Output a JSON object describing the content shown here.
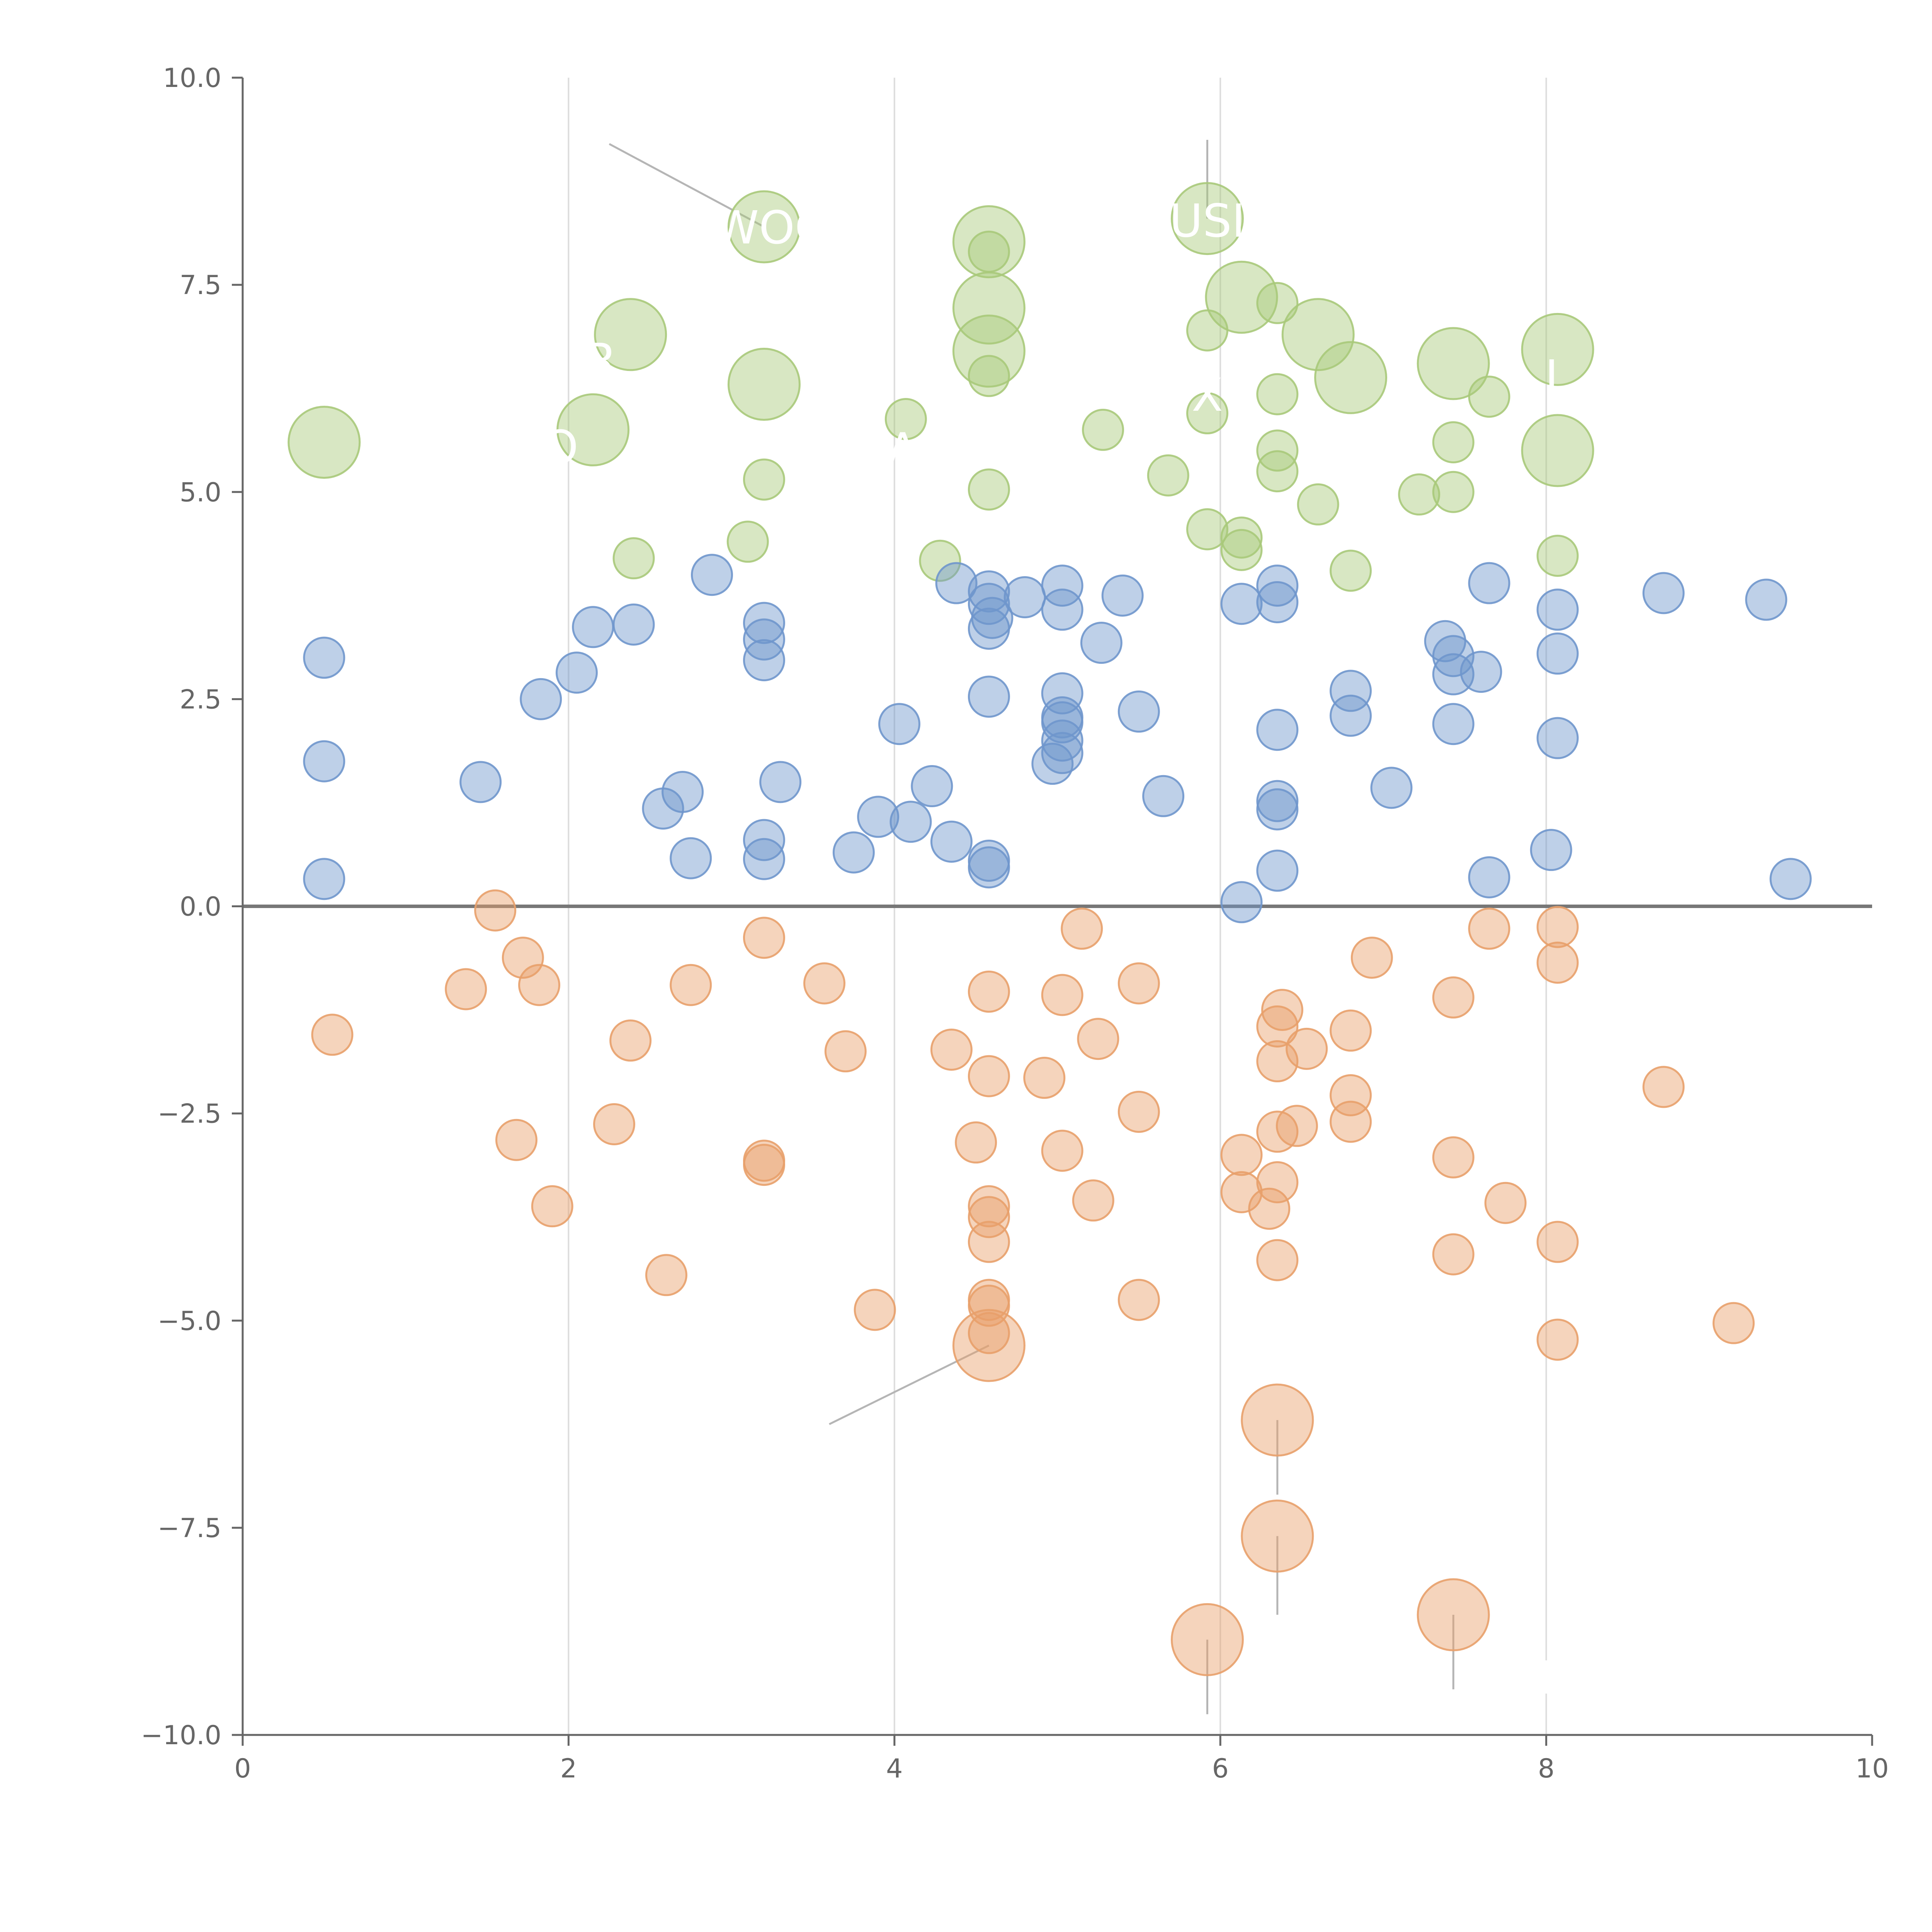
{
  "chart_data": {
    "type": "scatter",
    "title": "",
    "xlabel": "",
    "ylabel": "",
    "xlim": [
      0,
      10
    ],
    "ylim": [
      -10,
      10
    ],
    "x_ticks": [
      0,
      2,
      4,
      6,
      8,
      10
    ],
    "x_tick_labels": [
      "0",
      "2",
      "4",
      "6",
      "8",
      "10"
    ],
    "y_ticks": [
      10,
      7.5,
      5,
      2.5,
      0,
      -2.5,
      -5,
      -7.5,
      -10
    ],
    "y_tick_labels": [
      "10.0",
      "7.5",
      "5.0",
      "2.5",
      "0.0",
      "−2.5",
      "−5.0",
      "−7.5",
      "−10.0"
    ],
    "vertical_gridlines": [
      2,
      4,
      6,
      8
    ],
    "reference_line_y": 0,
    "colors": {
      "positive": "#a9c97a",
      "middle": "#6f96cc",
      "negative": "#e8a06a",
      "axis": "#666666",
      "grid": "#dddddd",
      "zero_line": "#777777",
      "leader": "#b5b5b5"
    },
    "series": [
      {
        "name": "positive",
        "points": [
          [
            0.5,
            5.6,
            2
          ],
          [
            2.38,
            6.9,
            2
          ],
          [
            2.15,
            5.75,
            2
          ],
          [
            2.4,
            4.2,
            1
          ],
          [
            3.2,
            8.2,
            2
          ],
          [
            3.2,
            6.3,
            2
          ],
          [
            3.2,
            5.15,
            1
          ],
          [
            3.1,
            4.4,
            1
          ],
          [
            4.07,
            5.88,
            1
          ],
          [
            4.28,
            4.17,
            1
          ],
          [
            4.58,
            8.02,
            2
          ],
          [
            4.58,
            7.9,
            1
          ],
          [
            4.58,
            7.22,
            2
          ],
          [
            4.58,
            6.7,
            2
          ],
          [
            4.58,
            6.4,
            1
          ],
          [
            4.58,
            5.03,
            1
          ],
          [
            5.28,
            5.75,
            1
          ],
          [
            5.68,
            5.2,
            1
          ],
          [
            5.92,
            8.3,
            2
          ],
          [
            5.92,
            6.95,
            1
          ],
          [
            5.92,
            5.95,
            1
          ],
          [
            5.92,
            4.55,
            1
          ],
          [
            6.13,
            7.35,
            2
          ],
          [
            6.13,
            4.45,
            1
          ],
          [
            6.13,
            4.3,
            1
          ],
          [
            6.35,
            7.28,
            1
          ],
          [
            6.35,
            6.18,
            1
          ],
          [
            6.35,
            5.5,
            1
          ],
          [
            6.35,
            5.25,
            1
          ],
          [
            6.6,
            6.9,
            2
          ],
          [
            6.6,
            4.85,
            1
          ],
          [
            6.8,
            6.38,
            2
          ],
          [
            6.8,
            4.05,
            1
          ],
          [
            7.22,
            4.97,
            1
          ],
          [
            7.43,
            6.55,
            2
          ],
          [
            7.43,
            5.6,
            1
          ],
          [
            7.43,
            5.0,
            1
          ],
          [
            7.65,
            6.15,
            1
          ],
          [
            8.07,
            6.72,
            2
          ],
          [
            8.07,
            5.5,
            2
          ],
          [
            8.07,
            4.23,
            1
          ]
        ]
      },
      {
        "name": "middle",
        "points": [
          [
            0.5,
            3.0,
            1
          ],
          [
            0.5,
            1.75,
            1
          ],
          [
            0.5,
            0.33,
            1
          ],
          [
            1.46,
            1.5,
            1
          ],
          [
            1.83,
            2.5,
            1
          ],
          [
            2.05,
            2.82,
            1
          ],
          [
            2.15,
            3.37,
            1
          ],
          [
            2.4,
            3.4,
            1
          ],
          [
            2.58,
            1.18,
            1
          ],
          [
            2.7,
            1.38,
            1
          ],
          [
            2.75,
            0.58,
            1
          ],
          [
            2.88,
            4.0,
            1
          ],
          [
            3.2,
            3.42,
            1
          ],
          [
            3.2,
            3.22,
            1
          ],
          [
            3.2,
            2.97,
            1
          ],
          [
            3.2,
            0.8,
            1
          ],
          [
            3.2,
            0.57,
            1
          ],
          [
            3.3,
            1.5,
            1
          ],
          [
            3.75,
            0.65,
            1
          ],
          [
            3.9,
            1.08,
            1
          ],
          [
            4.03,
            2.2,
            1
          ],
          [
            4.1,
            1.02,
            1
          ],
          [
            4.23,
            1.45,
            1
          ],
          [
            4.35,
            0.78,
            1
          ],
          [
            4.38,
            3.9,
            1
          ],
          [
            4.58,
            3.8,
            1
          ],
          [
            4.58,
            3.65,
            1
          ],
          [
            4.6,
            3.48,
            1
          ],
          [
            4.58,
            3.35,
            1
          ],
          [
            4.58,
            2.53,
            1
          ],
          [
            4.58,
            0.55,
            1
          ],
          [
            4.58,
            0.47,
            1
          ],
          [
            4.8,
            3.73,
            1
          ],
          [
            4.97,
            1.72,
            1
          ],
          [
            5.03,
            3.87,
            1
          ],
          [
            5.03,
            3.58,
            1
          ],
          [
            5.03,
            2.57,
            1
          ],
          [
            5.03,
            2.28,
            1
          ],
          [
            5.03,
            2.22,
            1
          ],
          [
            5.03,
            2.0,
            1
          ],
          [
            5.03,
            1.85,
            1
          ],
          [
            5.27,
            3.18,
            1
          ],
          [
            5.4,
            3.75,
            1
          ],
          [
            5.5,
            2.35,
            1
          ],
          [
            5.65,
            1.33,
            1
          ],
          [
            6.13,
            3.65,
            1
          ],
          [
            6.13,
            0.05,
            1
          ],
          [
            6.35,
            3.87,
            1
          ],
          [
            6.35,
            3.67,
            1
          ],
          [
            6.35,
            2.13,
            1
          ],
          [
            6.35,
            1.27,
            1
          ],
          [
            6.35,
            1.17,
            1
          ],
          [
            6.35,
            0.43,
            1
          ],
          [
            6.8,
            2.6,
            1
          ],
          [
            6.8,
            2.3,
            1
          ],
          [
            7.05,
            1.43,
            1
          ],
          [
            7.38,
            3.2,
            1
          ],
          [
            7.43,
            3.02,
            1
          ],
          [
            7.43,
            2.8,
            1
          ],
          [
            7.43,
            2.2,
            1
          ],
          [
            7.6,
            2.83,
            1
          ],
          [
            7.65,
            3.9,
            1
          ],
          [
            7.65,
            0.35,
            1
          ],
          [
            8.03,
            0.68,
            1
          ],
          [
            8.07,
            3.58,
            1
          ],
          [
            8.07,
            3.05,
            1
          ],
          [
            8.07,
            2.03,
            1
          ],
          [
            8.72,
            3.78,
            1
          ],
          [
            9.35,
            3.7,
            1
          ],
          [
            9.5,
            0.33,
            1
          ]
        ]
      },
      {
        "name": "negative",
        "points": [
          [
            0.55,
            -1.55,
            1
          ],
          [
            1.37,
            -1.0,
            1
          ],
          [
            1.55,
            -0.05,
            1
          ],
          [
            1.72,
            -0.62,
            1
          ],
          [
            1.82,
            -0.95,
            1
          ],
          [
            1.68,
            -2.82,
            1
          ],
          [
            1.9,
            -3.62,
            1
          ],
          [
            2.28,
            -2.63,
            1
          ],
          [
            2.38,
            -1.62,
            1
          ],
          [
            2.6,
            -4.45,
            1
          ],
          [
            2.75,
            -0.95,
            1
          ],
          [
            3.2,
            -0.38,
            1
          ],
          [
            3.2,
            -3.07,
            1
          ],
          [
            3.2,
            -3.12,
            1
          ],
          [
            3.57,
            -0.93,
            1
          ],
          [
            3.7,
            -1.75,
            1
          ],
          [
            3.88,
            -4.87,
            1
          ],
          [
            4.35,
            -1.73,
            1
          ],
          [
            4.5,
            -2.85,
            1
          ],
          [
            4.58,
            -1.03,
            1
          ],
          [
            4.58,
            -2.05,
            1
          ],
          [
            4.58,
            -3.62,
            1
          ],
          [
            4.58,
            -3.75,
            1
          ],
          [
            4.58,
            -4.05,
            1
          ],
          [
            4.58,
            -4.75,
            1
          ],
          [
            4.58,
            -4.82,
            1
          ],
          [
            4.58,
            -5.15,
            1
          ],
          [
            4.58,
            -5.3,
            2
          ],
          [
            4.92,
            -2.07,
            1
          ],
          [
            5.03,
            -1.07,
            1
          ],
          [
            5.03,
            -2.95,
            1
          ],
          [
            5.15,
            -0.27,
            1
          ],
          [
            5.22,
            -3.55,
            1
          ],
          [
            5.25,
            -1.6,
            1
          ],
          [
            5.5,
            -0.93,
            1
          ],
          [
            5.5,
            -2.48,
            1
          ],
          [
            5.5,
            -4.75,
            1
          ],
          [
            5.92,
            -8.85,
            2
          ],
          [
            6.13,
            -3.0,
            1
          ],
          [
            6.13,
            -3.45,
            1
          ],
          [
            6.3,
            -3.65,
            1
          ],
          [
            6.35,
            -1.45,
            1
          ],
          [
            6.38,
            -1.25,
            1
          ],
          [
            6.35,
            -1.87,
            1
          ],
          [
            6.35,
            -2.72,
            1
          ],
          [
            6.35,
            -3.33,
            1
          ],
          [
            6.35,
            -4.27,
            1
          ],
          [
            6.35,
            -6.2,
            2
          ],
          [
            6.35,
            -7.6,
            2
          ],
          [
            6.47,
            -2.65,
            1
          ],
          [
            6.53,
            -1.72,
            1
          ],
          [
            6.8,
            -1.5,
            1
          ],
          [
            6.8,
            -2.28,
            1
          ],
          [
            6.8,
            -2.6,
            1
          ],
          [
            6.93,
            -0.62,
            1
          ],
          [
            7.43,
            -1.1,
            1
          ],
          [
            7.43,
            -3.03,
            1
          ],
          [
            7.43,
            -4.2,
            1
          ],
          [
            7.43,
            -8.55,
            2
          ],
          [
            7.65,
            -0.27,
            1
          ],
          [
            7.75,
            -3.58,
            1
          ],
          [
            8.07,
            -0.25,
            1
          ],
          [
            8.07,
            -0.68,
            1
          ],
          [
            8.07,
            -4.05,
            1
          ],
          [
            8.07,
            -5.23,
            1
          ],
          [
            8.72,
            -2.18,
            1
          ],
          [
            9.15,
            -5.03,
            1
          ]
        ]
      }
    ],
    "annotations": [
      {
        "text": "WOO",
        "x": 3.25,
        "y": 8.0,
        "anchor": [
          3.2,
          8.2
        ],
        "tail": [
          2.25,
          9.2
        ]
      },
      {
        "text": "USI",
        "x": 5.92,
        "y": 8.08,
        "anchor": [
          5.92,
          8.3
        ],
        "tail": [
          5.92,
          9.25
        ]
      },
      {
        "text": "R",
        "x": 2.2,
        "y": 6.4,
        "anchor": null,
        "tail": null
      },
      {
        "text": "O",
        "x": 1.95,
        "y": 5.35,
        "anchor": null,
        "tail": null
      },
      {
        "text": "A",
        "x": 4.05,
        "y": 5.32,
        "anchor": null,
        "tail": null
      },
      {
        "text": "X",
        "x": 5.92,
        "y": 5.98,
        "anchor": null,
        "tail": null
      },
      {
        "text": "L",
        "x": 8.07,
        "y": 6.2,
        "anchor": null,
        "tail": null
      }
    ],
    "leader_lines": [
      {
        "from": [
          4.58,
          -5.3
        ],
        "to": [
          3.6,
          -6.25
        ]
      },
      {
        "from": [
          6.35,
          -6.2
        ],
        "to": [
          6.35,
          -7.1
        ]
      },
      {
        "from": [
          6.35,
          -7.6
        ],
        "to": [
          6.35,
          -8.55
        ]
      },
      {
        "from": [
          5.92,
          -8.85
        ],
        "to": [
          5.92,
          -9.75
        ]
      },
      {
        "from": [
          7.43,
          -8.55
        ],
        "to": [
          7.43,
          -9.45
        ]
      }
    ],
    "faint_labels": [
      {
        "text": "I",
        "x": 5.98,
        "y": 9.5
      },
      {
        "text": "I",
        "x": 8.0,
        "y": -9.5
      }
    ]
  }
}
